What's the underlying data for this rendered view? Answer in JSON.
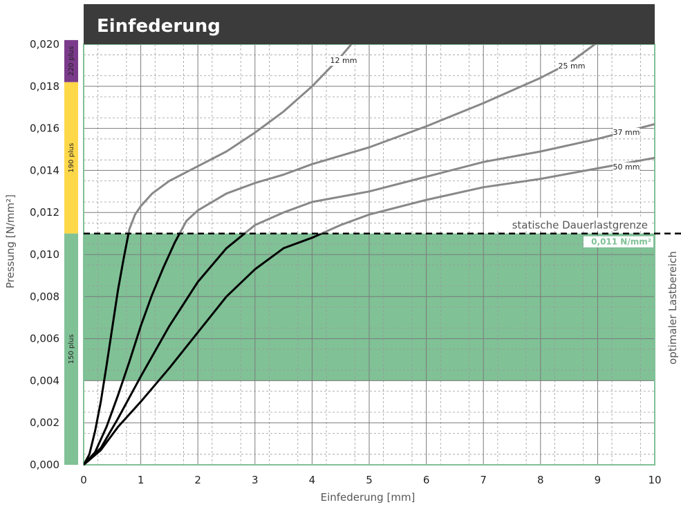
{
  "chart_data": {
    "type": "line",
    "title": "Einfederung",
    "xlabel": "Einfederung [mm]",
    "ylabel": "Pressung [N/mm²]",
    "xlim": [
      0,
      10
    ],
    "ylim": [
      0,
      0.02
    ],
    "x_ticks": [
      "0",
      "1",
      "2",
      "3",
      "4",
      "5",
      "6",
      "7",
      "8",
      "9",
      "10"
    ],
    "y_ticks": [
      "0,000",
      "0,002",
      "0,004",
      "0,006",
      "0,008",
      "0,010",
      "0,012",
      "0,014",
      "0,016",
      "0,018",
      "0,020"
    ],
    "grid": true,
    "optimal_range": {
      "label": "optimaler Lastbereich",
      "from": 0.004,
      "to": 0.011,
      "color": "#80c196"
    },
    "static_limit": {
      "label": "statische Dauerlastgrenze",
      "value": 0.011,
      "value_label": "0,011 N/mm²"
    },
    "product_bands": [
      {
        "name": "150 plus",
        "from": 0.0,
        "to": 0.011,
        "color": "#80c196"
      },
      {
        "name": "190 plus",
        "from": 0.011,
        "to": 0.0182,
        "color": "#ffd84a"
      },
      {
        "name": "220 plus",
        "from": 0.0182,
        "to": 0.0202,
        "color": "#7b3b8b"
      }
    ],
    "series": [
      {
        "name": "12 mm",
        "x": [
          0,
          0.1,
          0.2,
          0.3,
          0.4,
          0.5,
          0.6,
          0.7,
          0.8,
          0.9,
          1.0,
          1.2,
          1.5,
          2.0,
          2.5,
          3.0,
          3.5,
          4.0,
          4.5,
          4.75
        ],
        "y": [
          0,
          0.0005,
          0.0016,
          0.003,
          0.0047,
          0.0065,
          0.0083,
          0.0098,
          0.0112,
          0.0119,
          0.0123,
          0.0129,
          0.0135,
          0.0142,
          0.0149,
          0.0158,
          0.0168,
          0.018,
          0.0194,
          0.0202
        ]
      },
      {
        "name": "25 mm",
        "x": [
          0,
          0.2,
          0.4,
          0.6,
          0.8,
          1.0,
          1.2,
          1.4,
          1.6,
          1.8,
          2.0,
          2.5,
          3.0,
          3.5,
          4.0,
          5.0,
          6.0,
          7.0,
          8.0,
          8.5,
          9.0
        ],
        "y": [
          0,
          0.0006,
          0.0018,
          0.0033,
          0.0049,
          0.0066,
          0.0081,
          0.0094,
          0.0106,
          0.0116,
          0.0121,
          0.0129,
          0.0134,
          0.0138,
          0.0143,
          0.0151,
          0.0161,
          0.0172,
          0.0184,
          0.0191,
          0.0201
        ]
      },
      {
        "name": "37 mm",
        "x": [
          0,
          0.3,
          0.6,
          1.0,
          1.5,
          2.0,
          2.5,
          3.0,
          3.5,
          4.0,
          5.0,
          6.0,
          7.0,
          8.0,
          9.0,
          10.0
        ],
        "y": [
          0,
          0.0008,
          0.0022,
          0.0042,
          0.0066,
          0.0087,
          0.0103,
          0.0114,
          0.012,
          0.0125,
          0.013,
          0.0137,
          0.0144,
          0.0149,
          0.0155,
          0.0162
        ]
      },
      {
        "name": "50 mm",
        "x": [
          0,
          0.3,
          0.6,
          1.0,
          1.5,
          2.0,
          2.5,
          3.0,
          3.5,
          4.0,
          4.5,
          5.0,
          6.0,
          7.0,
          8.0,
          9.0,
          10.0
        ],
        "y": [
          0,
          0.0007,
          0.0018,
          0.003,
          0.0046,
          0.0063,
          0.008,
          0.0093,
          0.0103,
          0.0108,
          0.0114,
          0.0119,
          0.0126,
          0.0132,
          0.0136,
          0.0141,
          0.0146
        ]
      }
    ]
  }
}
